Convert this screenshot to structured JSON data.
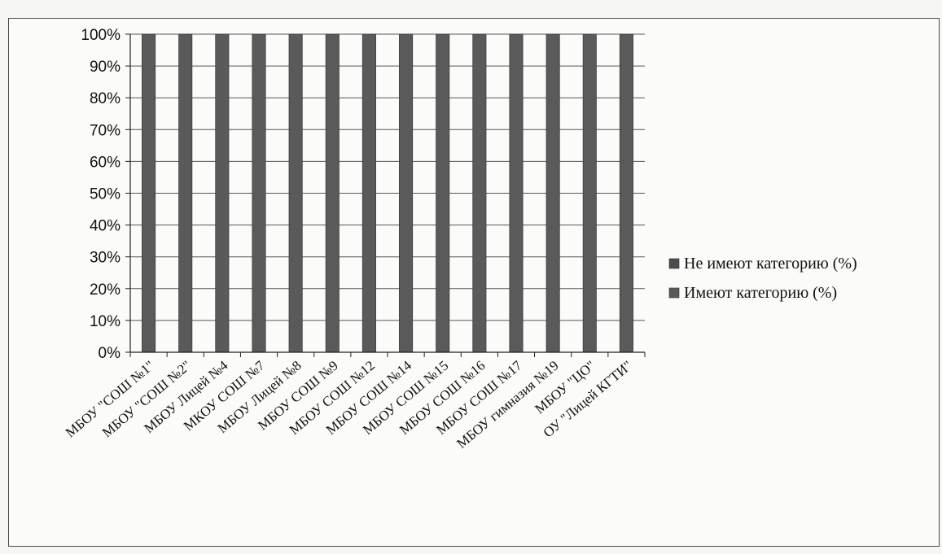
{
  "chart_data": {
    "type": "bar",
    "stacked": true,
    "percent": true,
    "title": "",
    "xlabel": "",
    "ylabel": "",
    "ylim": [
      0,
      100
    ],
    "yticks": [
      "0%",
      "10%",
      "20%",
      "30%",
      "40%",
      "50%",
      "60%",
      "70%",
      "80%",
      "90%",
      "100%"
    ],
    "grid": true,
    "legend_position": "right",
    "categories": [
      "МБОУ \"СОШ №1\"",
      "МБОУ \"СОШ №2\"",
      "МБОУ Лицей №4",
      "МКОУ СОШ №7",
      "МБОУ Лицей №8",
      "МБОУ СОШ №9",
      "МБОУ СОШ №12",
      "МБОУ СОШ №14",
      "МБОУ СОШ №15",
      "МБОУ СОШ №16",
      "МБОУ СОШ №17",
      "МБОУ гимназия №19",
      "МБОУ \"ЦО\"",
      "ОУ \"Лицей КГТИ\""
    ],
    "series": [
      {
        "name": "Имеют категорию (%)",
        "color": "#5a5a5a",
        "values": [
          100,
          100,
          100,
          100,
          100,
          100,
          100,
          100,
          100,
          100,
          100,
          100,
          100,
          100
        ]
      },
      {
        "name": "Не имеют категорию (%)",
        "color": "#4d4d4d",
        "values": [
          0,
          0,
          0,
          0,
          0,
          0,
          0,
          0,
          0,
          0,
          0,
          0,
          0,
          0
        ]
      }
    ],
    "legend_order": [
      "Не имеют категорию (%)",
      "Имеют категорию (%)"
    ]
  }
}
